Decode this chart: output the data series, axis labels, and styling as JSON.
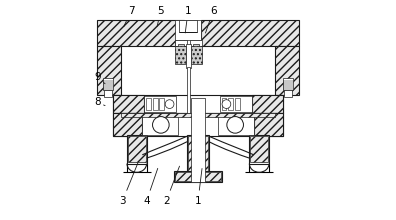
{
  "bg_color": "#ffffff",
  "line_color": "#1a1a1a",
  "figsize": [
    3.96,
    2.2
  ],
  "dpi": 100,
  "annotations": [
    {
      "text": "7",
      "xt": 0.195,
      "yt": 0.955,
      "xp": 0.155,
      "yp": 0.87
    },
    {
      "text": "5",
      "xt": 0.33,
      "yt": 0.955,
      "xp": 0.31,
      "yp": 0.87
    },
    {
      "text": "1",
      "xt": 0.455,
      "yt": 0.955,
      "xp": 0.44,
      "yp": 0.84
    },
    {
      "text": "6",
      "xt": 0.57,
      "yt": 0.955,
      "xp": 0.53,
      "yp": 0.84
    },
    {
      "text": "9",
      "xt": 0.04,
      "yt": 0.65,
      "xp": 0.075,
      "yp": 0.62
    },
    {
      "text": "8",
      "xt": 0.04,
      "yt": 0.535,
      "xp": 0.075,
      "yp": 0.52
    },
    {
      "text": "3",
      "xt": 0.155,
      "yt": 0.085,
      "xp": 0.23,
      "yp": 0.27
    },
    {
      "text": "4",
      "xt": 0.265,
      "yt": 0.085,
      "xp": 0.32,
      "yp": 0.245
    },
    {
      "text": "2",
      "xt": 0.355,
      "yt": 0.085,
      "xp": 0.42,
      "yp": 0.255
    },
    {
      "text": "1",
      "xt": 0.5,
      "yt": 0.085,
      "xp": 0.52,
      "yp": 0.245
    }
  ]
}
